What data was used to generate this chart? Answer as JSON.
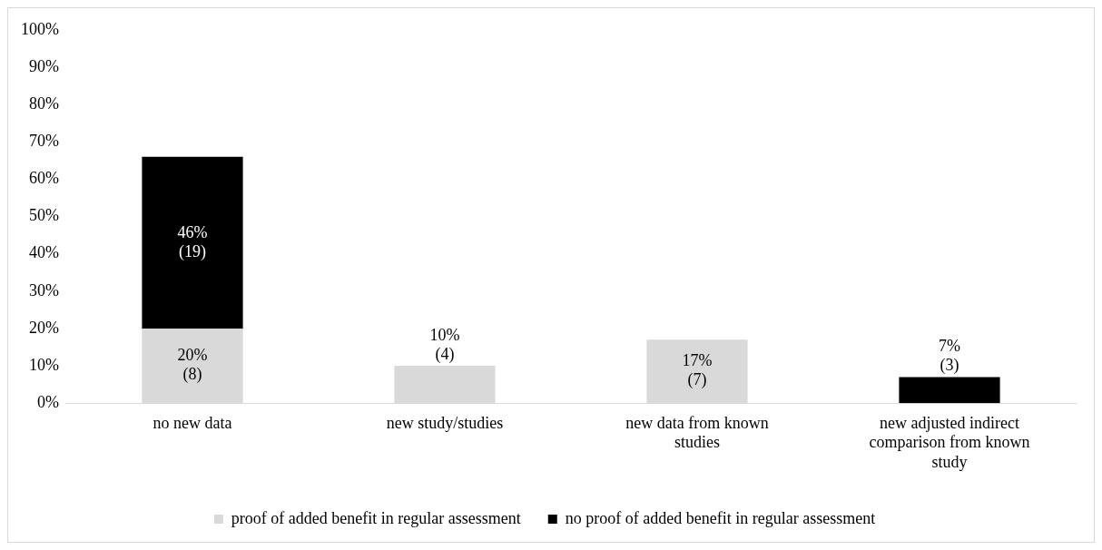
{
  "chart_data": {
    "type": "bar",
    "stacked": true,
    "categories": [
      "no new data",
      "new study/studies",
      "new data from known studies",
      "new adjusted indirect comparison from known study"
    ],
    "series": [
      {
        "name": "proof of added benefit in regular assessment",
        "color": "#d9d9d9",
        "values": [
          20,
          10,
          17,
          null
        ],
        "value_labels": [
          "20%\n(8)",
          "10%\n(4)",
          "17%\n(7)",
          null
        ]
      },
      {
        "name": "no proof of added benefit in regular assessment",
        "color": "#000000",
        "values": [
          46,
          null,
          null,
          7
        ],
        "value_labels": [
          "46%\n(19)",
          null,
          null,
          "7%\n(3)"
        ]
      }
    ],
    "ylim": [
      0,
      100
    ],
    "yticks": [
      {
        "value": 0,
        "label": "0%"
      },
      {
        "value": 10,
        "label": "10%"
      },
      {
        "value": 20,
        "label": "20%"
      },
      {
        "value": 30,
        "label": "30%"
      },
      {
        "value": 40,
        "label": "40%"
      },
      {
        "value": 50,
        "label": "50%"
      },
      {
        "value": 60,
        "label": "60%"
      },
      {
        "value": 70,
        "label": "70%"
      },
      {
        "value": 80,
        "label": "80%"
      },
      {
        "value": 90,
        "label": "90%"
      },
      {
        "value": 100,
        "label": "100%"
      }
    ],
    "grid": false,
    "legend": "bottom"
  }
}
